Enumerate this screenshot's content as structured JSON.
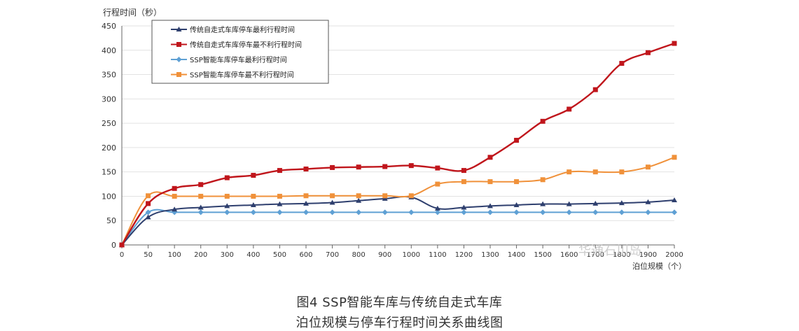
{
  "chart_data": {
    "type": "line",
    "ylabel": "行程时间（秒）",
    "xlabel": "泊位规模（个）",
    "categories": [
      "0",
      "50",
      "100",
      "200",
      "300",
      "400",
      "500",
      "600",
      "700",
      "800",
      "900",
      "1000",
      "1100",
      "1200",
      "1300",
      "1400",
      "1500",
      "1600",
      "1700",
      "1800",
      "1900",
      "2000"
    ],
    "y_ticks": [
      "0",
      "50",
      "100",
      "150",
      "200",
      "250",
      "300",
      "350",
      "400",
      "450"
    ],
    "ylim": [
      0,
      450
    ],
    "grid": true,
    "legend_position": "top-left",
    "series": [
      {
        "name": "传统自走式车库停车最利行程时间",
        "color": "#2e3f6e",
        "marker": "triangle",
        "values": [
          0,
          57,
          73,
          77,
          80,
          82,
          84,
          85,
          87,
          91,
          95,
          98,
          75,
          77,
          80,
          82,
          84,
          84,
          85,
          86,
          88,
          92
        ]
      },
      {
        "name": "传统自走式车库停车最不利行程时间",
        "color": "#c0161c",
        "marker": "square",
        "values": [
          0,
          85,
          116,
          124,
          138,
          143,
          153,
          156,
          159,
          160,
          161,
          163,
          158,
          153,
          180,
          215,
          254,
          279,
          319,
          373,
          395,
          414
        ]
      },
      {
        "name": "SSP智能车库停车最利行程时间",
        "color": "#5fa0d4",
        "marker": "diamond",
        "values": [
          0,
          67,
          67,
          67,
          67,
          67,
          67,
          67,
          67,
          67,
          67,
          67,
          67,
          67,
          67,
          67,
          67,
          67,
          67,
          67,
          67,
          67
        ]
      },
      {
        "name": "SSP智能车库停车最不利行程时间",
        "color": "#f0913a",
        "marker": "square",
        "values": [
          0,
          101,
          100,
          100,
          100,
          100,
          100,
          101,
          101,
          101,
          101,
          101,
          125,
          130,
          130,
          130,
          134,
          150,
          150,
          150,
          160,
          180
        ]
      }
    ]
  },
  "caption": {
    "line1": "图4 SSP智能车库与传统自走式车库",
    "line2": "泊位规模与停车行程时间关系曲线图"
  },
  "watermark": "华通石川岛"
}
